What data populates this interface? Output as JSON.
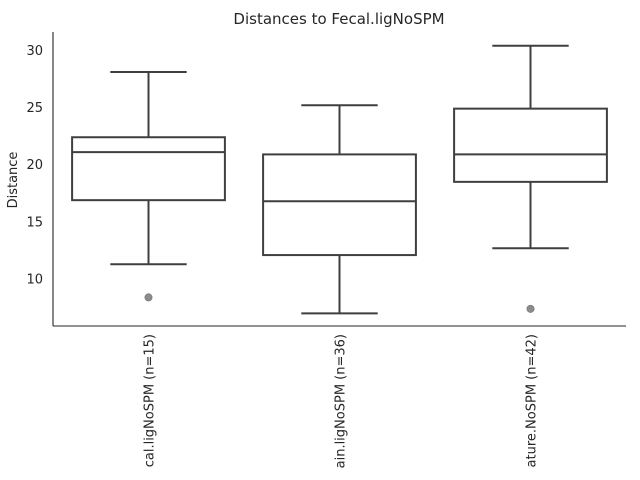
{
  "chart_data": {
    "type": "box",
    "title": "Distances to Fecal.ligNoSPM",
    "xlabel": "",
    "ylabel": "Distance",
    "ylim": [
      5.9,
      31.6
    ],
    "yticks": [
      10,
      15,
      20,
      25,
      30
    ],
    "grid": false,
    "categories": [
      "cal.ligNoSPM (n=15)",
      "ain.ligNoSPM (n=36)",
      "ature.NoSPM (n=42)"
    ],
    "boxes": [
      {
        "whisker_low": 11.3,
        "q1": 16.9,
        "median": 21.1,
        "q3": 22.4,
        "whisker_high": 28.1,
        "outliers": [
          8.4
        ]
      },
      {
        "whisker_low": 7.0,
        "q1": 12.1,
        "median": 16.8,
        "q3": 20.9,
        "whisker_high": 25.2,
        "outliers": []
      },
      {
        "whisker_low": 12.7,
        "q1": 18.5,
        "median": 20.9,
        "q3": 24.9,
        "whisker_high": 30.4,
        "outliers": [
          7.4
        ]
      }
    ],
    "colors": {
      "box_edge": "#3f3f3f",
      "outlier": "#8c8c8c",
      "axis": "#262626"
    }
  }
}
